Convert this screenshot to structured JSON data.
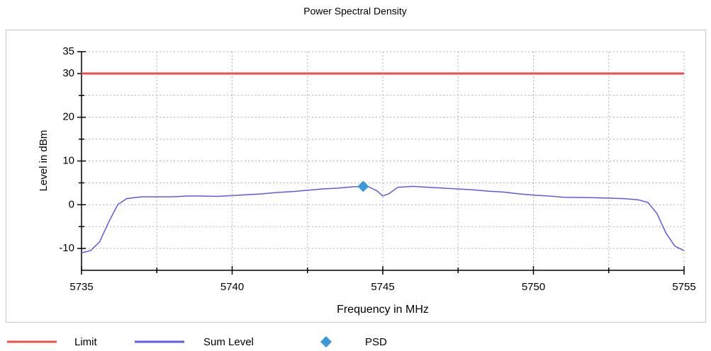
{
  "chart_data": {
    "type": "line",
    "title": "Power Spectral Density",
    "x_label": "Frequency in MHz",
    "y_label": "Level in dBm",
    "xlim": [
      5735,
      5755
    ],
    "ylim": [
      -15,
      35
    ],
    "xticks": [
      5735,
      5740,
      5745,
      5750,
      5755
    ],
    "xminor_ticks": [
      5737.5,
      5742.5,
      5747.5,
      5752.5
    ],
    "yticks": [
      -10,
      0,
      10,
      20,
      30,
      35
    ],
    "yminor_ticks": [
      -5,
      5,
      15,
      25
    ],
    "grid": true,
    "legend": "bottom",
    "series": [
      {
        "name": "Limit",
        "color": "#f24b4b",
        "x": [
          5735,
          5755
        ],
        "values": [
          30,
          30
        ]
      },
      {
        "name": "Sum Level",
        "color": "#5a5af0",
        "x": [
          5735,
          5735.3,
          5735.6,
          5735.9,
          5736.2,
          5736.5,
          5737,
          5738,
          5738.5,
          5739,
          5739.5,
          5740,
          5740.5,
          5741,
          5741.5,
          5742,
          5742.5,
          5743,
          5743.5,
          5744,
          5744.5,
          5744.8,
          5745,
          5745.2,
          5745.5,
          5746,
          5746.5,
          5747,
          5748,
          5748.5,
          5749,
          5749.5,
          5750,
          5750.5,
          5751,
          5752,
          5752.5,
          5753,
          5753.5,
          5753.8,
          5754.1,
          5754.4,
          5754.7,
          5755
        ],
        "values": [
          -11,
          -10.5,
          -8.5,
          -4,
          0,
          1.4,
          1.8,
          1.8,
          2.0,
          2.0,
          1.9,
          2.1,
          2.3,
          2.5,
          2.8,
          3.0,
          3.3,
          3.6,
          3.8,
          4.1,
          4.2,
          3.2,
          2.0,
          2.5,
          4.0,
          4.2,
          4.0,
          3.8,
          3.4,
          3.1,
          2.9,
          2.5,
          2.2,
          2.0,
          1.7,
          1.6,
          1.5,
          1.4,
          1.1,
          0.5,
          -2,
          -6.5,
          -9.5,
          -10.5
        ]
      },
      {
        "name": "PSD",
        "color": "#3a9ad9",
        "marker": "diamond",
        "x": [
          5744.35
        ],
        "values": [
          4.2
        ]
      }
    ]
  }
}
